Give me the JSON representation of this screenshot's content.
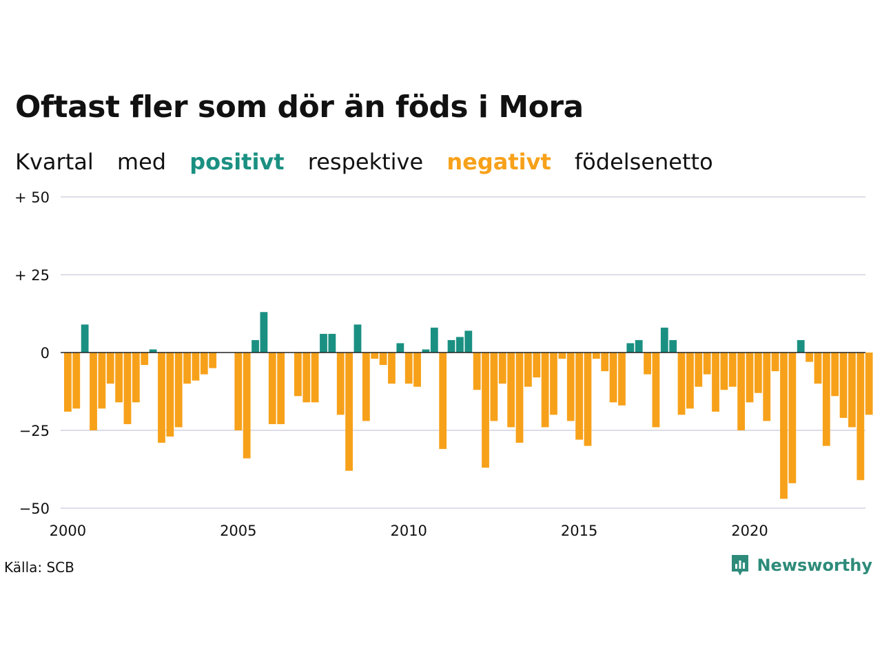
{
  "title": "Oftast fler som dör än föds i Mora",
  "subtitle": {
    "w1": "Kvartal",
    "w2": "med",
    "positive_word": "positivt",
    "w4": "respektive",
    "negative_word": "negativt",
    "w6": "födelsenetto"
  },
  "source": "Källa: SCB",
  "brand": "Newsworthy",
  "colors": {
    "positive": "#1a9082",
    "negative": "#f7a11a",
    "grid": "#dddde8",
    "zero": "#222222",
    "brand": "#2e8b7a"
  },
  "chart_data": {
    "type": "bar",
    "x_start_year": 2000,
    "periods_per_year": 4,
    "values": [
      -19,
      -18,
      9,
      -25,
      -18,
      -10,
      -16,
      -23,
      -16,
      -4,
      1,
      -29,
      -27,
      -24,
      -10,
      -9,
      -7,
      -5,
      0,
      0,
      -25,
      -34,
      4,
      13,
      -23,
      -23,
      0,
      -14,
      -16,
      -16,
      6,
      6,
      -20,
      -38,
      9,
      -22,
      -2,
      -4,
      -10,
      3,
      -10,
      -11,
      1,
      8,
      -31,
      4,
      5,
      7,
      -12,
      -37,
      -22,
      -10,
      -24,
      -29,
      -11,
      -8,
      -24,
      -20,
      -2,
      -22,
      -28,
      -30,
      -2,
      -6,
      -16,
      -17,
      3,
      4,
      -7,
      -24,
      8,
      4,
      -20,
      -18,
      -11,
      -7,
      -19,
      -12,
      -11,
      -25,
      -16,
      -13,
      -22,
      -6,
      -47,
      -42,
      4,
      -3,
      -10,
      -30,
      -14,
      -21,
      -24,
      -41,
      -20
    ],
    "y_ticks": [
      50,
      25,
      0,
      -25,
      -50
    ],
    "y_tick_labels": [
      "+ 50",
      "+ 25",
      "0",
      "−25",
      "−50"
    ],
    "x_tick_years": [
      2000,
      2005,
      2010,
      2015,
      2020
    ],
    "x_tick_labels": [
      "2000",
      "2005",
      "2010",
      "2015",
      "2020"
    ],
    "ylim": [
      -50,
      50
    ]
  }
}
